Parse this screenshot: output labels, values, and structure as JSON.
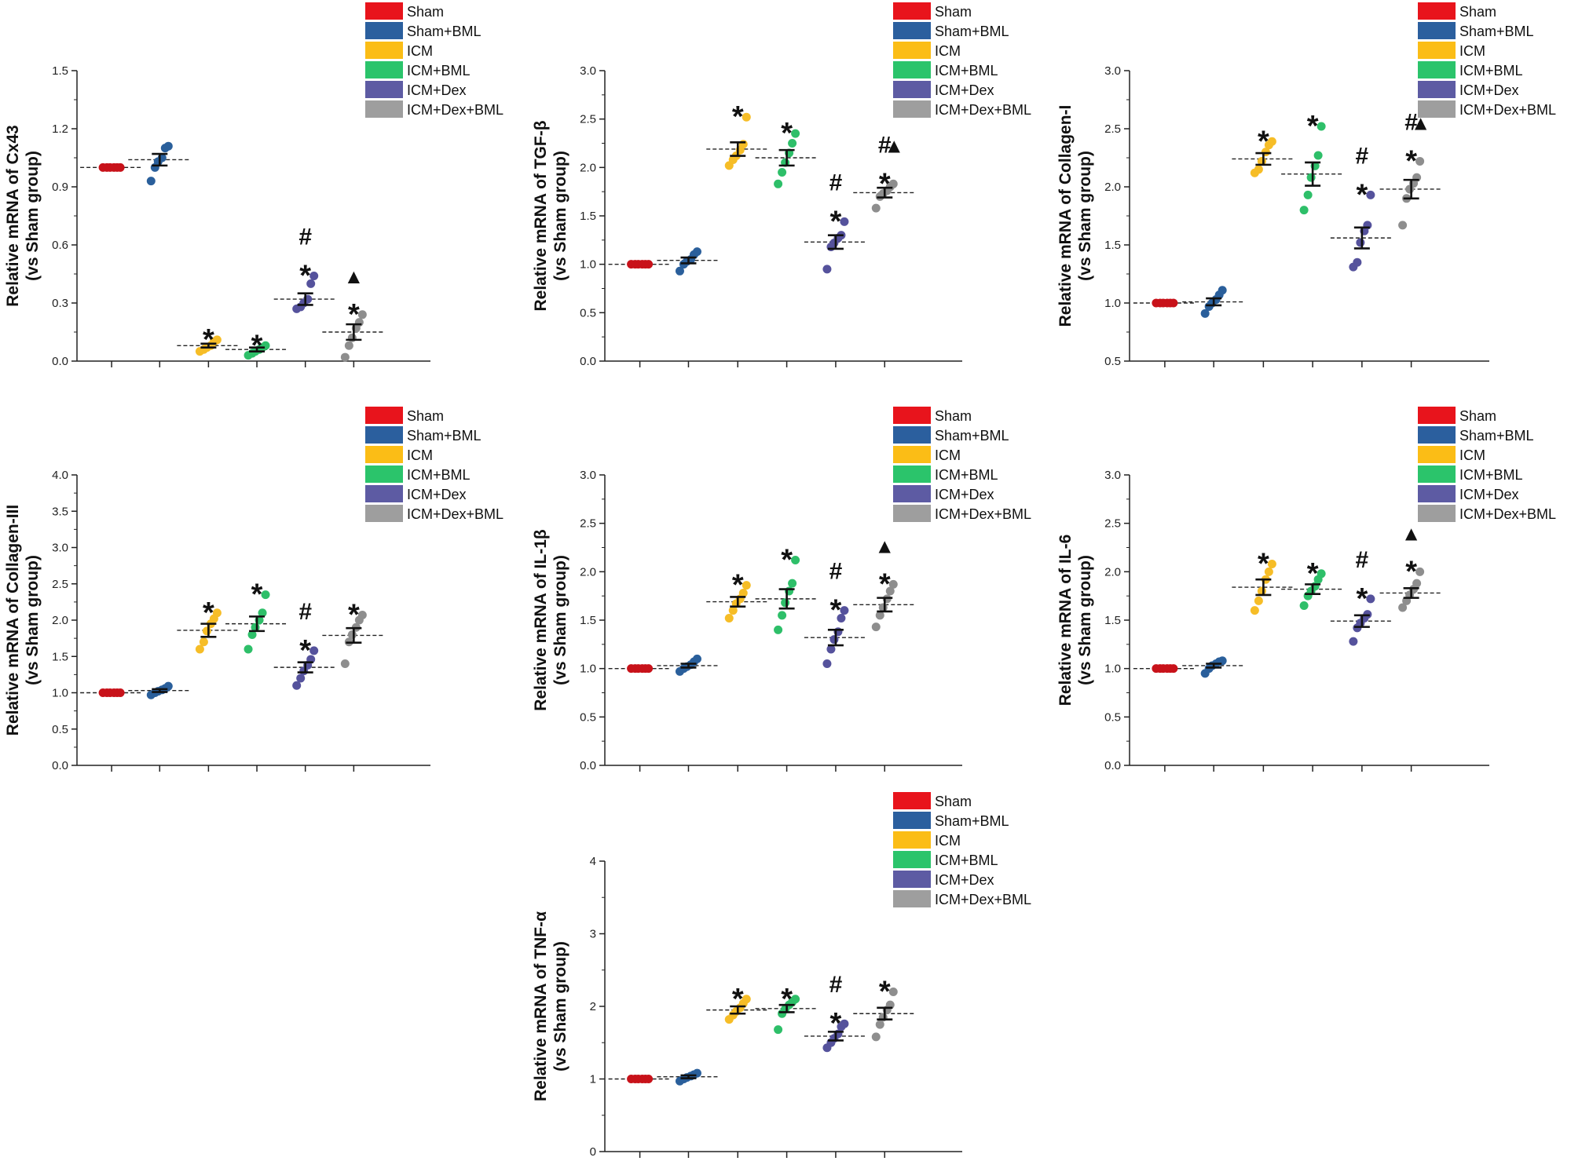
{
  "chart_data": [
    {
      "type": "scatter",
      "ylabel": [
        "Relative mRNA of Cx43",
        "(vs Sham group)"
      ],
      "ylim": [
        0,
        1.5
      ],
      "yticks": [
        "0.0",
        "0.3",
        "0.6",
        "0.9",
        "1.2",
        "1.5"
      ],
      "yticks_values": [
        0,
        0.3,
        0.6,
        0.9,
        1.2,
        1.5
      ],
      "legend": [
        "Sham",
        "Sham+BML",
        "ICM",
        "ICM+BML",
        "ICM+Dex",
        "ICM+Dex+BML"
      ],
      "groups": [
        {
          "name": "Sham",
          "mean": 1.0,
          "sem": 0.0,
          "points": [
            1.0,
            1.0,
            1.0,
            1.0,
            1.0,
            1.0
          ],
          "marks": []
        },
        {
          "name": "Sham+BML",
          "mean": 1.04,
          "sem": 0.03,
          "points": [
            0.93,
            1.0,
            1.03,
            1.05,
            1.1,
            1.11
          ],
          "marks": []
        },
        {
          "name": "ICM",
          "mean": 0.08,
          "sem": 0.01,
          "points": [
            0.05,
            0.06,
            0.07,
            0.08,
            0.1,
            0.11
          ],
          "marks": [
            "*"
          ]
        },
        {
          "name": "ICM+BML",
          "mean": 0.06,
          "sem": 0.01,
          "points": [
            0.03,
            0.04,
            0.05,
            0.06,
            0.07,
            0.08
          ],
          "marks": [
            "*"
          ]
        },
        {
          "name": "ICM+Dex",
          "mean": 0.32,
          "sem": 0.03,
          "points": [
            0.27,
            0.28,
            0.3,
            0.32,
            0.4,
            0.44
          ],
          "marks": [
            "*",
            "#"
          ]
        },
        {
          "name": "ICM+Dex+BML",
          "mean": 0.15,
          "sem": 0.04,
          "points": [
            0.02,
            0.08,
            0.12,
            0.17,
            0.2,
            0.24
          ],
          "marks": [
            "*",
            "▲"
          ]
        }
      ]
    },
    {
      "type": "scatter",
      "ylabel": [
        "Relative mRNA of TGF-β",
        "(vs Sham group)"
      ],
      "ylim": [
        0,
        3.0
      ],
      "yticks": [
        "0.0",
        "0.5",
        "1.0",
        "1.5",
        "2.0",
        "2.5",
        "3.0"
      ],
      "yticks_values": [
        0,
        0.5,
        1.0,
        1.5,
        2.0,
        2.5,
        3.0
      ],
      "legend": [
        "Sham",
        "Sham+BML",
        "ICM",
        "ICM+BML",
        "ICM+Dex",
        "ICM+Dex+BML"
      ],
      "groups": [
        {
          "name": "Sham",
          "mean": 1.0,
          "sem": 0.0,
          "points": [
            1.0,
            1.0,
            1.0,
            1.0,
            1.0,
            1.0
          ],
          "marks": []
        },
        {
          "name": "Sham+BML",
          "mean": 1.04,
          "sem": 0.03,
          "points": [
            0.93,
            1.0,
            1.03,
            1.05,
            1.1,
            1.13
          ],
          "marks": []
        },
        {
          "name": "ICM",
          "mean": 2.19,
          "sem": 0.07,
          "points": [
            2.02,
            2.08,
            2.12,
            2.18,
            2.24,
            2.52
          ],
          "marks": [
            "*"
          ]
        },
        {
          "name": "ICM+BML",
          "mean": 2.1,
          "sem": 0.08,
          "points": [
            1.83,
            1.95,
            2.05,
            2.15,
            2.25,
            2.35
          ],
          "marks": [
            "*"
          ]
        },
        {
          "name": "ICM+Dex",
          "mean": 1.23,
          "sem": 0.07,
          "points": [
            0.95,
            1.18,
            1.22,
            1.27,
            1.3,
            1.44
          ],
          "marks": [
            "*",
            "#"
          ]
        },
        {
          "name": "ICM+Dex+BML",
          "mean": 1.74,
          "sem": 0.05,
          "points": [
            1.58,
            1.7,
            1.73,
            1.76,
            1.8,
            1.83
          ],
          "marks": [
            "*",
            "#",
            "▲"
          ]
        }
      ]
    },
    {
      "type": "scatter",
      "ylabel": [
        "Relative mRNA of Collagen-I",
        "(vs Sham group)"
      ],
      "ylim": [
        0.5,
        3.0
      ],
      "yticks": [
        "0.5",
        "1.0",
        "1.5",
        "2.0",
        "2.5",
        "3.0"
      ],
      "yticks_values": [
        0.5,
        1.0,
        1.5,
        2.0,
        2.5,
        3.0
      ],
      "legend": [
        "Sham",
        "Sham+BML",
        "ICM",
        "ICM+BML",
        "ICM+Dex",
        "ICM+Dex+BML"
      ],
      "groups": [
        {
          "name": "Sham",
          "mean": 1.0,
          "sem": 0.0,
          "points": [
            1.0,
            1.0,
            1.0,
            1.0,
            1.0,
            1.0
          ],
          "marks": []
        },
        {
          "name": "Sham+BML",
          "mean": 1.01,
          "sem": 0.03,
          "points": [
            0.91,
            0.97,
            1.0,
            1.03,
            1.07,
            1.11
          ],
          "marks": []
        },
        {
          "name": "ICM",
          "mean": 2.24,
          "sem": 0.05,
          "points": [
            2.12,
            2.15,
            2.22,
            2.3,
            2.36,
            2.39
          ],
          "marks": [
            "*"
          ]
        },
        {
          "name": "ICM+BML",
          "mean": 2.11,
          "sem": 0.1,
          "points": [
            1.8,
            1.93,
            2.08,
            2.18,
            2.27,
            2.52
          ],
          "marks": [
            "*"
          ]
        },
        {
          "name": "ICM+Dex",
          "mean": 1.56,
          "sem": 0.09,
          "points": [
            1.31,
            1.35,
            1.52,
            1.62,
            1.67,
            1.93
          ],
          "marks": [
            "*",
            "#"
          ]
        },
        {
          "name": "ICM+Dex+BML",
          "mean": 1.98,
          "sem": 0.08,
          "points": [
            1.67,
            1.9,
            1.98,
            2.03,
            2.08,
            2.22
          ],
          "marks": [
            "*",
            "#",
            "▲"
          ]
        }
      ]
    },
    {
      "type": "scatter",
      "ylabel": [
        "Relative mRNA of Collagen-III",
        "(vs Sham group)"
      ],
      "ylim": [
        0,
        4.0
      ],
      "yticks": [
        "0.0",
        "0.5",
        "1.0",
        "1.5",
        "2.0",
        "2.5",
        "3.0",
        "3.5",
        "4.0"
      ],
      "yticks_values": [
        0,
        0.5,
        1.0,
        1.5,
        2.0,
        2.5,
        3.0,
        3.5,
        4.0
      ],
      "legend": [
        "Sham",
        "Sham+BML",
        "ICM",
        "ICM+BML",
        "ICM+Dex",
        "ICM+Dex+BML"
      ],
      "groups": [
        {
          "name": "Sham",
          "mean": 1.0,
          "sem": 0.0,
          "points": [
            1.0,
            1.0,
            1.0,
            1.0,
            1.0,
            1.0
          ],
          "marks": []
        },
        {
          "name": "Sham+BML",
          "mean": 1.03,
          "sem": 0.02,
          "points": [
            0.97,
            1.0,
            1.02,
            1.04,
            1.06,
            1.09
          ],
          "marks": []
        },
        {
          "name": "ICM",
          "mean": 1.86,
          "sem": 0.09,
          "points": [
            1.6,
            1.7,
            1.85,
            1.95,
            2.02,
            2.1
          ],
          "marks": [
            "*"
          ]
        },
        {
          "name": "ICM+BML",
          "mean": 1.95,
          "sem": 0.1,
          "points": [
            1.6,
            1.8,
            1.9,
            2.0,
            2.1,
            2.35
          ],
          "marks": [
            "*"
          ]
        },
        {
          "name": "ICM+Dex",
          "mean": 1.35,
          "sem": 0.07,
          "points": [
            1.1,
            1.2,
            1.3,
            1.38,
            1.46,
            1.58
          ],
          "marks": [
            "*",
            "#"
          ]
        },
        {
          "name": "ICM+Dex+BML",
          "mean": 1.79,
          "sem": 0.1,
          "points": [
            1.4,
            1.7,
            1.8,
            1.9,
            2.0,
            2.07
          ],
          "marks": [
            "*"
          ]
        }
      ]
    },
    {
      "type": "scatter",
      "ylabel": [
        "Relative mRNA of IL-1β",
        "(vs Sham group)"
      ],
      "ylim": [
        0,
        3.0
      ],
      "yticks": [
        "0.0",
        "0.5",
        "1.0",
        "1.5",
        "2.0",
        "2.5",
        "3.0"
      ],
      "yticks_values": [
        0,
        0.5,
        1.0,
        1.5,
        2.0,
        2.5,
        3.0
      ],
      "legend": [
        "Sham",
        "Sham+BML",
        "ICM",
        "ICM+BML",
        "ICM+Dex",
        "ICM+Dex+BML"
      ],
      "groups": [
        {
          "name": "Sham",
          "mean": 1.0,
          "sem": 0.0,
          "points": [
            1.0,
            1.0,
            1.0,
            1.0,
            1.0,
            1.0
          ],
          "marks": []
        },
        {
          "name": "Sham+BML",
          "mean": 1.03,
          "sem": 0.02,
          "points": [
            0.97,
            1.0,
            1.02,
            1.04,
            1.07,
            1.1
          ],
          "marks": []
        },
        {
          "name": "ICM",
          "mean": 1.69,
          "sem": 0.05,
          "points": [
            1.52,
            1.6,
            1.67,
            1.72,
            1.78,
            1.86
          ],
          "marks": [
            "*"
          ]
        },
        {
          "name": "ICM+BML",
          "mean": 1.72,
          "sem": 0.1,
          "points": [
            1.4,
            1.55,
            1.68,
            1.8,
            1.88,
            2.12
          ],
          "marks": [
            "*"
          ]
        },
        {
          "name": "ICM+Dex",
          "mean": 1.32,
          "sem": 0.08,
          "points": [
            1.05,
            1.2,
            1.3,
            1.38,
            1.52,
            1.6
          ],
          "marks": [
            "*",
            "#"
          ]
        },
        {
          "name": "ICM+Dex+BML",
          "mean": 1.66,
          "sem": 0.07,
          "points": [
            1.43,
            1.55,
            1.63,
            1.72,
            1.8,
            1.87
          ],
          "marks": [
            "*",
            "▲"
          ]
        }
      ]
    },
    {
      "type": "scatter",
      "ylabel": [
        "Relative mRNA of IL-6",
        "(vs Sham group)"
      ],
      "ylim": [
        0,
        3.0
      ],
      "yticks": [
        "0.0",
        "0.5",
        "1.0",
        "1.5",
        "2.0",
        "2.5",
        "3.0"
      ],
      "yticks_values": [
        0,
        0.5,
        1.0,
        1.5,
        2.0,
        2.5,
        3.0
      ],
      "legend": [
        "Sham",
        "Sham+BML",
        "ICM",
        "ICM+BML",
        "ICM+Dex",
        "ICM+Dex+BML"
      ],
      "groups": [
        {
          "name": "Sham",
          "mean": 1.0,
          "sem": 0.0,
          "points": [
            1.0,
            1.0,
            1.0,
            1.0,
            1.0,
            1.0
          ],
          "marks": []
        },
        {
          "name": "Sham+BML",
          "mean": 1.03,
          "sem": 0.02,
          "points": [
            0.95,
            1.0,
            1.03,
            1.05,
            1.07,
            1.08
          ],
          "marks": []
        },
        {
          "name": "ICM",
          "mean": 1.84,
          "sem": 0.08,
          "points": [
            1.6,
            1.7,
            1.8,
            1.92,
            2.0,
            2.08
          ],
          "marks": [
            "*"
          ]
        },
        {
          "name": "ICM+BML",
          "mean": 1.82,
          "sem": 0.05,
          "points": [
            1.65,
            1.75,
            1.8,
            1.85,
            1.92,
            1.98
          ],
          "marks": [
            "*"
          ]
        },
        {
          "name": "ICM+Dex",
          "mean": 1.49,
          "sem": 0.06,
          "points": [
            1.28,
            1.42,
            1.47,
            1.52,
            1.56,
            1.72
          ],
          "marks": [
            "*",
            "#"
          ]
        },
        {
          "name": "ICM+Dex+BML",
          "mean": 1.78,
          "sem": 0.05,
          "points": [
            1.63,
            1.7,
            1.76,
            1.82,
            1.88,
            2.0
          ],
          "marks": [
            "*",
            "▲"
          ]
        }
      ]
    },
    {
      "type": "scatter",
      "ylabel": [
        "Relative mRNA of TNF-α",
        "(vs Sham group)"
      ],
      "ylim": [
        0,
        4
      ],
      "yticks": [
        "0",
        "1",
        "2",
        "3",
        "4"
      ],
      "yticks_values": [
        0,
        1,
        2,
        3,
        4
      ],
      "legend": [
        "Sham",
        "Sham+BML",
        "ICM",
        "ICM+BML",
        "ICM+Dex",
        "ICM+Dex+BML"
      ],
      "groups": [
        {
          "name": "Sham",
          "mean": 1.0,
          "sem": 0.0,
          "points": [
            1.0,
            1.0,
            1.0,
            1.0,
            1.0,
            1.0
          ],
          "marks": []
        },
        {
          "name": "Sham+BML",
          "mean": 1.03,
          "sem": 0.02,
          "points": [
            0.97,
            1.0,
            1.02,
            1.04,
            1.06,
            1.08
          ],
          "marks": []
        },
        {
          "name": "ICM",
          "mean": 1.95,
          "sem": 0.05,
          "points": [
            1.82,
            1.88,
            1.93,
            1.98,
            2.04,
            2.1
          ],
          "marks": [
            "*"
          ]
        },
        {
          "name": "ICM+BML",
          "mean": 1.97,
          "sem": 0.05,
          "points": [
            1.68,
            1.9,
            1.96,
            2.02,
            2.06,
            2.1
          ],
          "marks": [
            "*"
          ]
        },
        {
          "name": "ICM+Dex",
          "mean": 1.59,
          "sem": 0.06,
          "points": [
            1.43,
            1.5,
            1.56,
            1.62,
            1.72,
            1.76
          ],
          "marks": [
            "*",
            "#"
          ]
        },
        {
          "name": "ICM+Dex+BML",
          "mean": 1.9,
          "sem": 0.08,
          "points": [
            1.58,
            1.75,
            1.85,
            1.95,
            2.02,
            2.2
          ],
          "marks": [
            "*"
          ]
        }
      ]
    }
  ],
  "colors": {
    "Sham": "#e8141c",
    "Sham+BML": "#2b5f9e",
    "ICM": "#fbbd16",
    "ICM+BML": "#2bc46b",
    "ICM+Dex": "#5d5ba3",
    "ICM+Dex+BML": "#9e9e9e",
    "Sham_point": "#c8121a",
    "Sham+BML_point": "#2a5f9b",
    "ICM_point": "#f6bd27",
    "ICM+BML_point": "#2ebf69",
    "ICM+Dex_point": "#55529c",
    "ICM+Dex+BML_point": "#8e8e8e"
  }
}
